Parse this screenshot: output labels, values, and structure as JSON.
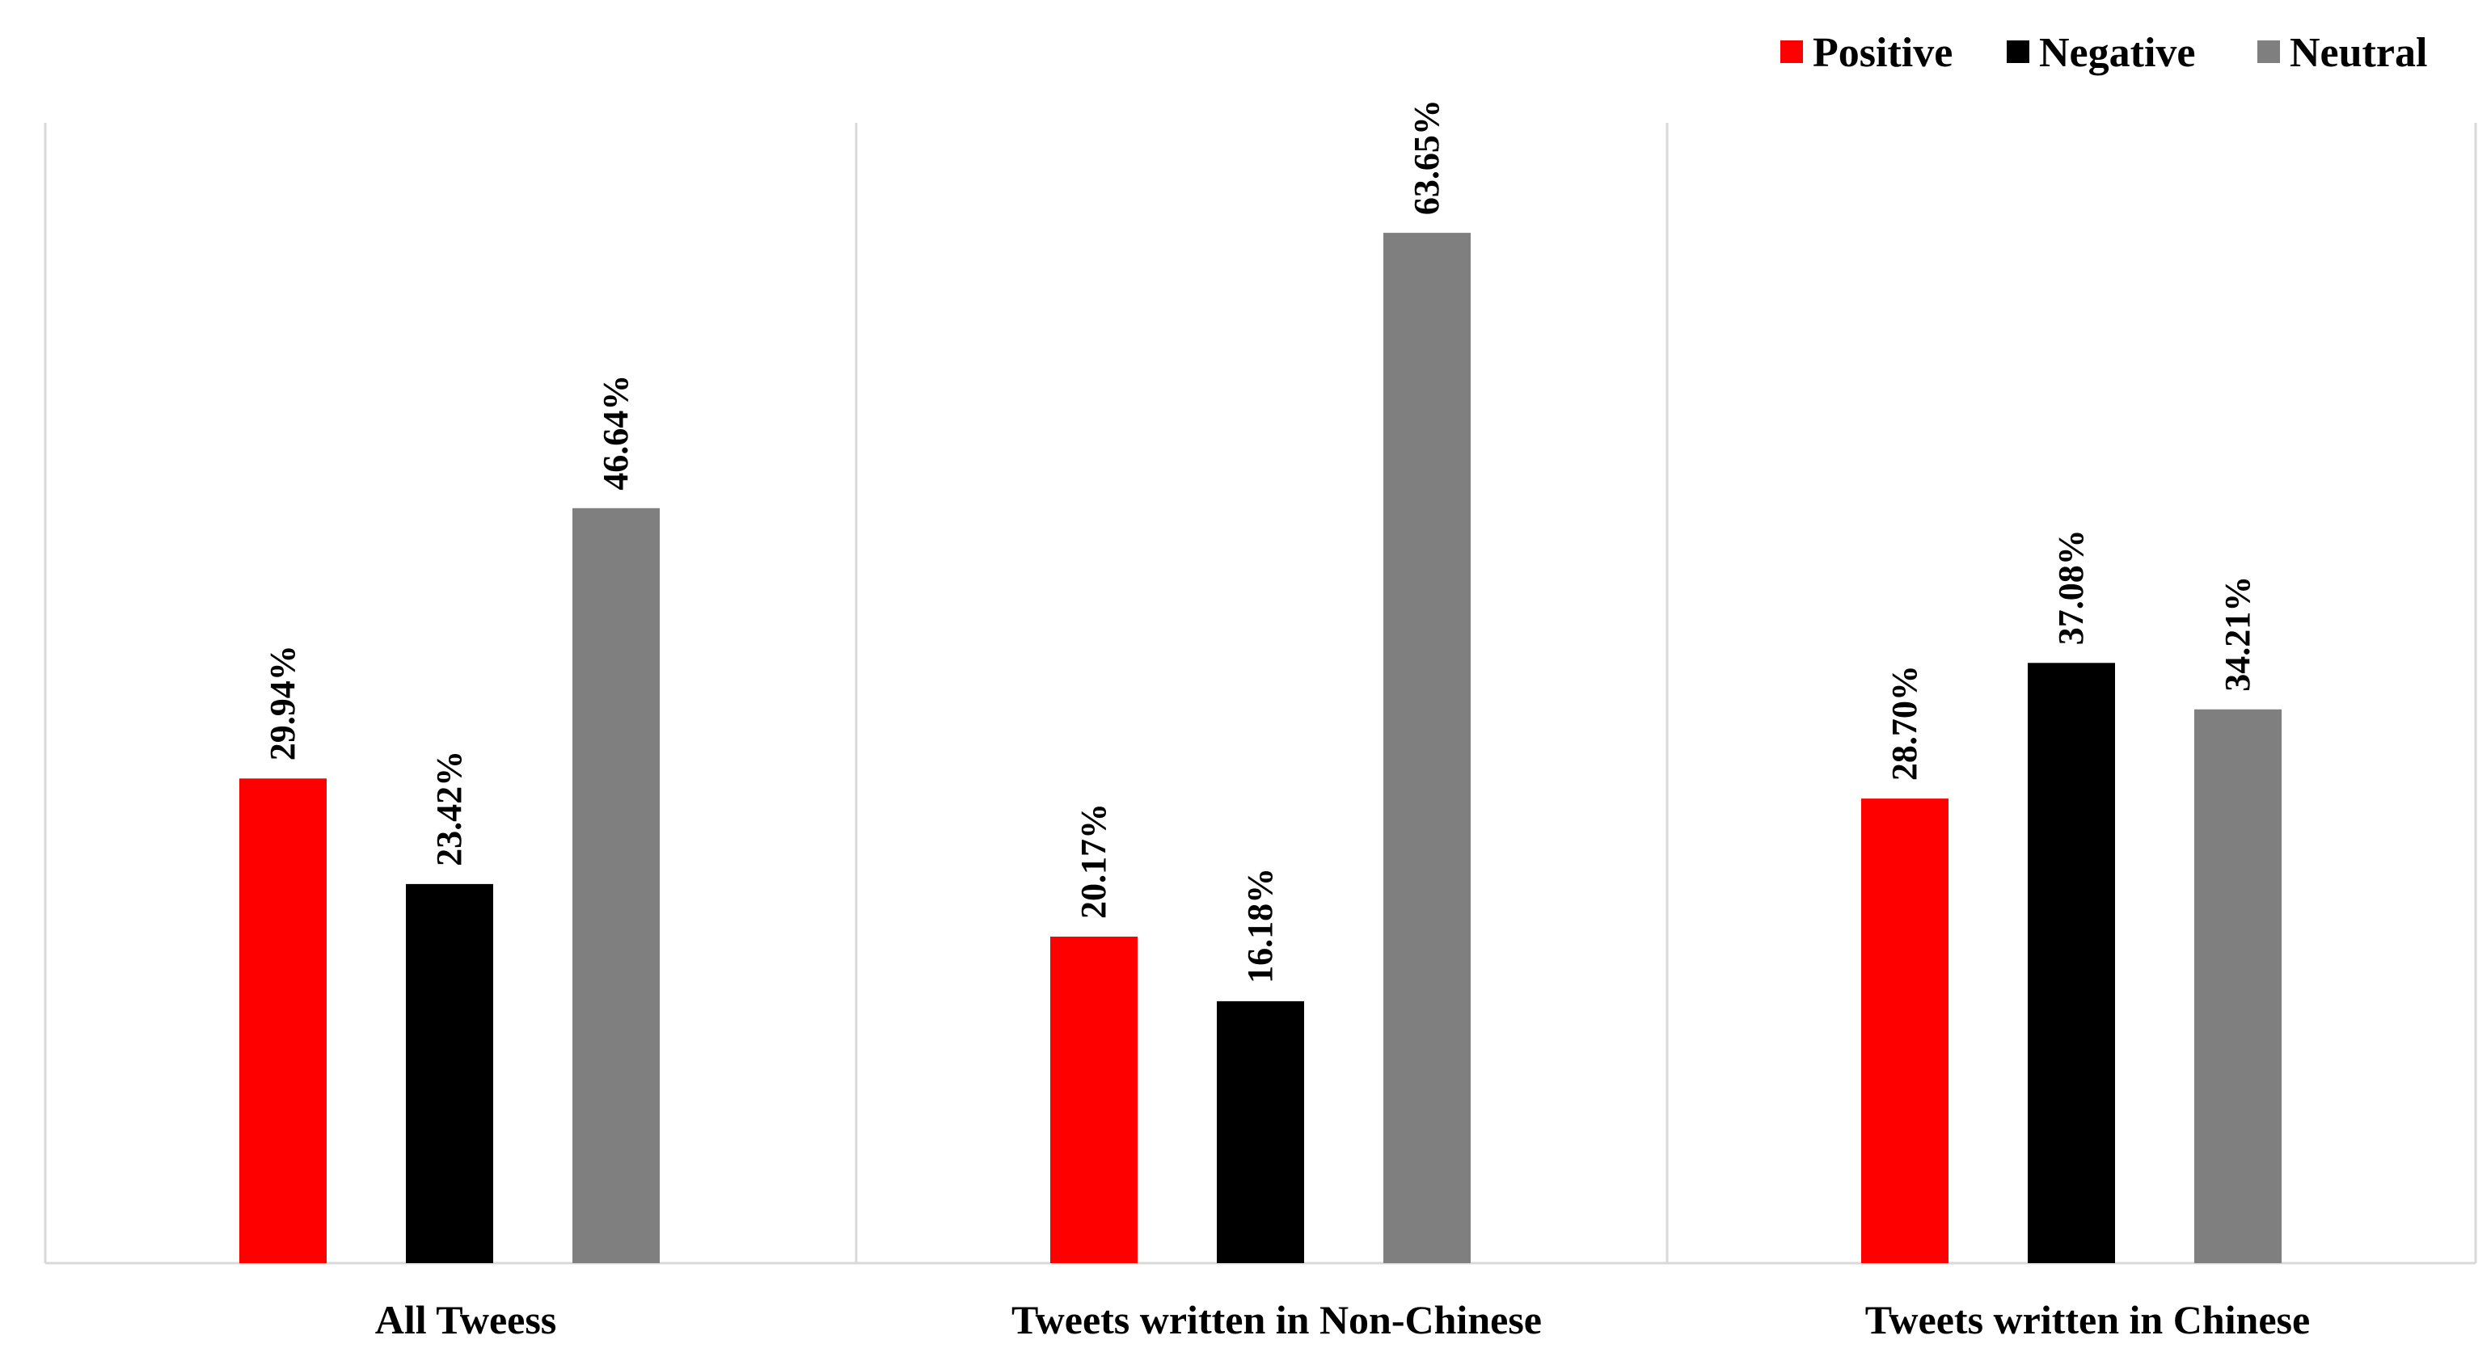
{
  "chart_data": {
    "type": "bar",
    "title": "",
    "xlabel": "",
    "ylabel": "",
    "ylim": [
      0,
      70
    ],
    "grid": false,
    "legend_position": "top-right",
    "categories": [
      "All Tweess",
      "Tweets written in Non-Chinese",
      "Tweets written in Chinese"
    ],
    "series": [
      {
        "name": "Positive",
        "color": "#ff0000",
        "values": [
          29.94,
          20.17,
          28.7
        ],
        "labels": [
          "29.94%",
          "20.17%",
          "28.70%"
        ]
      },
      {
        "name": "Negative",
        "color": "#000000",
        "values": [
          23.42,
          16.18,
          37.08
        ],
        "labels": [
          "23.42%",
          "16.18%",
          "37.08%"
        ]
      },
      {
        "name": "Neutral",
        "color": "#7f7f7f",
        "values": [
          46.64,
          63.65,
          34.21
        ],
        "labels": [
          "46.64%",
          "63.65%",
          "34.21%"
        ]
      }
    ]
  }
}
